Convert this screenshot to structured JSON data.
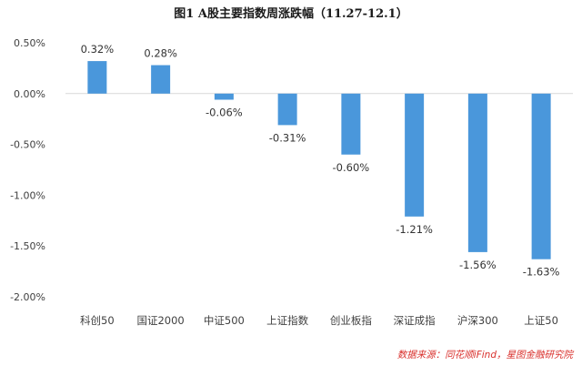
{
  "chart_data": {
    "type": "bar",
    "title": "图1   A股主要指数周涨跌幅（11.27-12.1）",
    "xlabel": "",
    "ylabel": "",
    "categories": [
      "科创50",
      "国证2000",
      "中证500",
      "上证指数",
      "创业板指",
      "深证成指",
      "沪深300",
      "上证50"
    ],
    "values": [
      0.32,
      0.28,
      -0.06,
      -0.31,
      -0.6,
      -1.21,
      -1.56,
      -1.63
    ],
    "data_labels": [
      "0.32%",
      "0.28%",
      "-0.06%",
      "-0.31%",
      "-0.60%",
      "-1.21%",
      "-1.56%",
      "-1.63%"
    ],
    "ylim": [
      -2.0,
      0.5
    ],
    "yticks": [
      0.5,
      0.0,
      -0.5,
      -1.0,
      -1.5,
      -2.0
    ],
    "ytick_labels": [
      "0.50%",
      "0.00%",
      "-0.50%",
      "-1.00%",
      "-1.50%",
      "-2.00%"
    ],
    "grid": false,
    "legend": "none",
    "bar_color": "#4a97db",
    "source_note": "数据来源：同花顺iFind，星图金融研究院",
    "source_color": "#d9302c"
  }
}
